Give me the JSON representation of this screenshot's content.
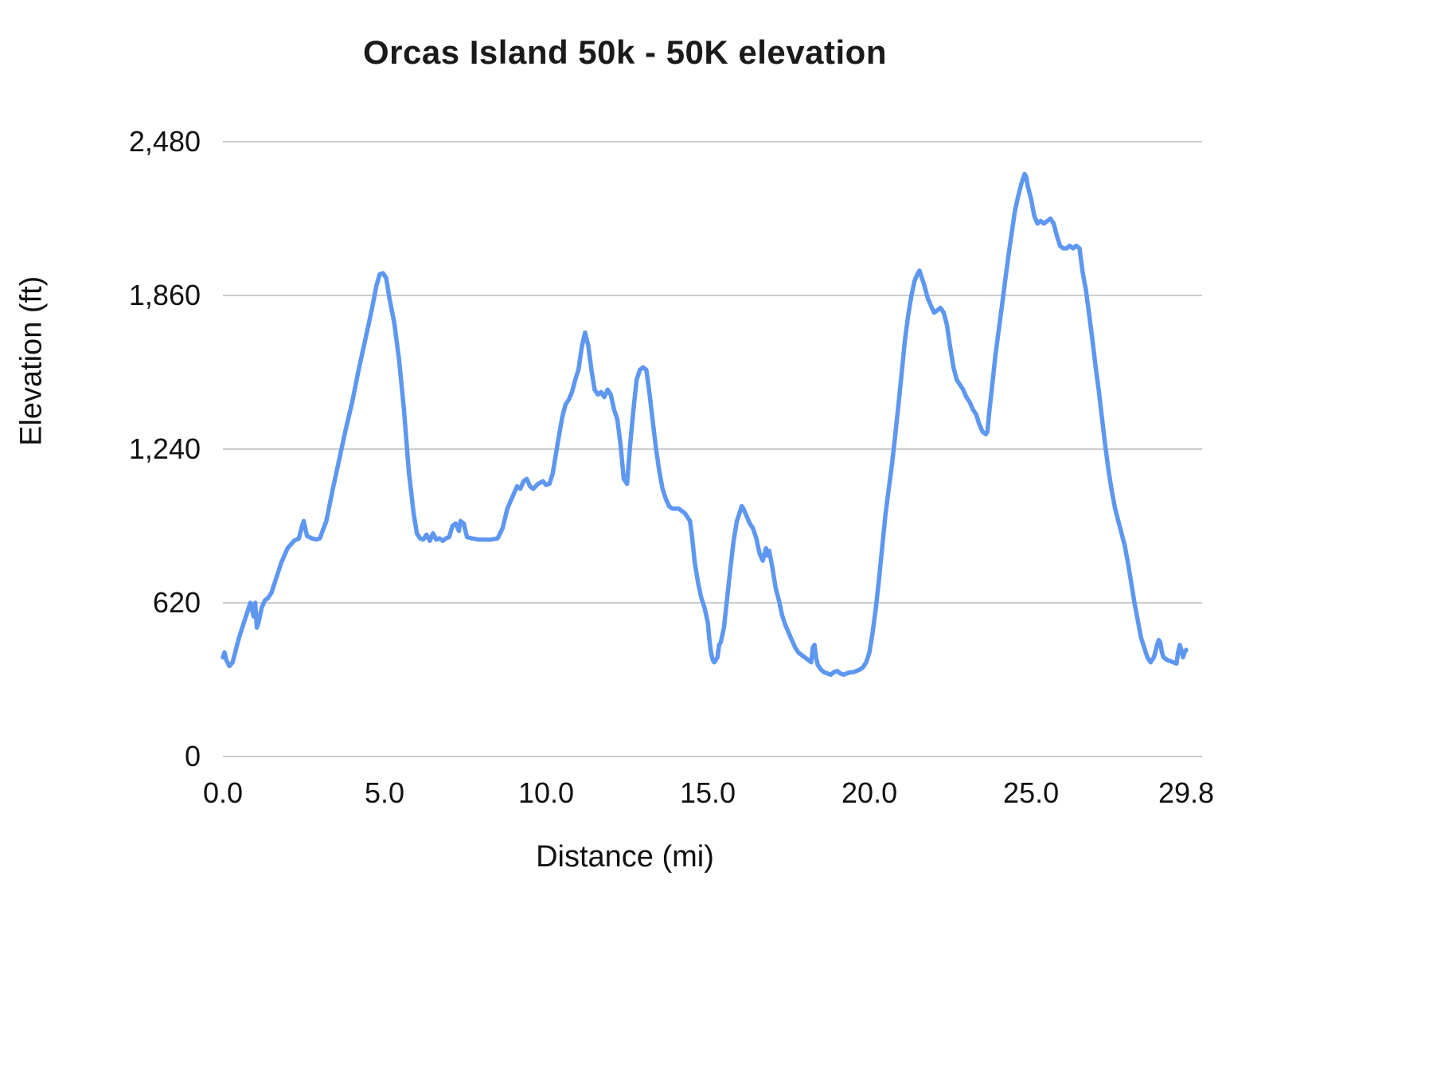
{
  "title": "Orcas Island 50k - 50K elevation",
  "chart_data": {
    "type": "line",
    "title": "Orcas Island 50k - 50K elevation",
    "xlabel": "Distance (mi)",
    "ylabel": "Elevation (ft)",
    "xlim": [
      0,
      29.8
    ],
    "ylim": [
      0,
      2480
    ],
    "grid": "horizontal",
    "legend": "none",
    "line_color": "#5e97f0",
    "grid_color": "#cccccc",
    "x_ticks": [
      {
        "value": 0,
        "label": "0.0"
      },
      {
        "value": 5,
        "label": "5.0"
      },
      {
        "value": 10,
        "label": "10.0"
      },
      {
        "value": 15,
        "label": "15.0"
      },
      {
        "value": 20,
        "label": "20.0"
      },
      {
        "value": 25,
        "label": "25.0"
      },
      {
        "value": 29.8,
        "label": "29.8"
      }
    ],
    "y_ticks": [
      {
        "value": 0,
        "label": "0"
      },
      {
        "value": 620,
        "label": "620"
      },
      {
        "value": 1240,
        "label": "1,240"
      },
      {
        "value": 1860,
        "label": "1,860"
      },
      {
        "value": 2480,
        "label": "2,480"
      }
    ],
    "series": [
      {
        "name": "elevation",
        "points": [
          [
            0.0,
            400
          ],
          [
            0.05,
            420
          ],
          [
            0.1,
            390
          ],
          [
            0.2,
            365
          ],
          [
            0.3,
            380
          ],
          [
            0.5,
            480
          ],
          [
            0.7,
            560
          ],
          [
            0.85,
            620
          ],
          [
            0.95,
            565
          ],
          [
            1.0,
            620
          ],
          [
            1.05,
            520
          ],
          [
            1.1,
            540
          ],
          [
            1.2,
            600
          ],
          [
            1.3,
            630
          ],
          [
            1.4,
            640
          ],
          [
            1.5,
            660
          ],
          [
            1.6,
            700
          ],
          [
            1.8,
            780
          ],
          [
            2.0,
            840
          ],
          [
            2.2,
            870
          ],
          [
            2.35,
            880
          ],
          [
            2.45,
            930
          ],
          [
            2.5,
            950
          ],
          [
            2.55,
            920
          ],
          [
            2.6,
            890
          ],
          [
            2.75,
            880
          ],
          [
            2.9,
            875
          ],
          [
            3.0,
            880
          ],
          [
            3.2,
            950
          ],
          [
            3.4,
            1080
          ],
          [
            3.6,
            1200
          ],
          [
            3.8,
            1320
          ],
          [
            4.0,
            1430
          ],
          [
            4.2,
            1560
          ],
          [
            4.4,
            1680
          ],
          [
            4.6,
            1800
          ],
          [
            4.75,
            1900
          ],
          [
            4.85,
            1945
          ],
          [
            4.95,
            1950
          ],
          [
            5.05,
            1930
          ],
          [
            5.15,
            1850
          ],
          [
            5.3,
            1750
          ],
          [
            5.45,
            1600
          ],
          [
            5.6,
            1400
          ],
          [
            5.75,
            1150
          ],
          [
            5.9,
            980
          ],
          [
            6.0,
            900
          ],
          [
            6.1,
            880
          ],
          [
            6.2,
            875
          ],
          [
            6.3,
            895
          ],
          [
            6.4,
            870
          ],
          [
            6.5,
            900
          ],
          [
            6.6,
            875
          ],
          [
            6.7,
            880
          ],
          [
            6.8,
            870
          ],
          [
            6.9,
            880
          ],
          [
            7.0,
            885
          ],
          [
            7.1,
            930
          ],
          [
            7.2,
            940
          ],
          [
            7.3,
            910
          ],
          [
            7.35,
            950
          ],
          [
            7.45,
            940
          ],
          [
            7.55,
            885
          ],
          [
            7.7,
            880
          ],
          [
            7.9,
            875
          ],
          [
            8.1,
            875
          ],
          [
            8.3,
            875
          ],
          [
            8.5,
            880
          ],
          [
            8.65,
            920
          ],
          [
            8.8,
            1000
          ],
          [
            9.0,
            1060
          ],
          [
            9.1,
            1090
          ],
          [
            9.2,
            1080
          ],
          [
            9.3,
            1110
          ],
          [
            9.4,
            1120
          ],
          [
            9.5,
            1090
          ],
          [
            9.6,
            1080
          ],
          [
            9.75,
            1100
          ],
          [
            9.9,
            1110
          ],
          [
            10.0,
            1095
          ],
          [
            10.1,
            1100
          ],
          [
            10.2,
            1140
          ],
          [
            10.35,
            1260
          ],
          [
            10.5,
            1370
          ],
          [
            10.6,
            1420
          ],
          [
            10.7,
            1440
          ],
          [
            10.8,
            1470
          ],
          [
            10.9,
            1520
          ],
          [
            11.0,
            1560
          ],
          [
            11.1,
            1650
          ],
          [
            11.2,
            1710
          ],
          [
            11.3,
            1660
          ],
          [
            11.4,
            1560
          ],
          [
            11.5,
            1480
          ],
          [
            11.6,
            1460
          ],
          [
            11.7,
            1470
          ],
          [
            11.8,
            1450
          ],
          [
            11.9,
            1480
          ],
          [
            12.0,
            1460
          ],
          [
            12.1,
            1400
          ],
          [
            12.2,
            1360
          ],
          [
            12.3,
            1260
          ],
          [
            12.4,
            1120
          ],
          [
            12.5,
            1100
          ],
          [
            12.6,
            1260
          ],
          [
            12.7,
            1400
          ],
          [
            12.8,
            1520
          ],
          [
            12.9,
            1560
          ],
          [
            13.0,
            1570
          ],
          [
            13.1,
            1560
          ],
          [
            13.2,
            1460
          ],
          [
            13.3,
            1350
          ],
          [
            13.4,
            1240
          ],
          [
            13.5,
            1150
          ],
          [
            13.6,
            1080
          ],
          [
            13.7,
            1040
          ],
          [
            13.8,
            1010
          ],
          [
            13.9,
            1000
          ],
          [
            14.0,
            1000
          ],
          [
            14.1,
            1000
          ],
          [
            14.2,
            990
          ],
          [
            14.3,
            980
          ],
          [
            14.4,
            960
          ],
          [
            14.45,
            950
          ],
          [
            14.5,
            900
          ],
          [
            14.6,
            780
          ],
          [
            14.7,
            700
          ],
          [
            14.8,
            640
          ],
          [
            14.9,
            600
          ],
          [
            15.0,
            540
          ],
          [
            15.05,
            470
          ],
          [
            15.1,
            420
          ],
          [
            15.15,
            390
          ],
          [
            15.2,
            380
          ],
          [
            15.3,
            400
          ],
          [
            15.35,
            450
          ],
          [
            15.4,
            460
          ],
          [
            15.5,
            520
          ],
          [
            15.6,
            640
          ],
          [
            15.7,
            760
          ],
          [
            15.8,
            870
          ],
          [
            15.9,
            950
          ],
          [
            16.0,
            990
          ],
          [
            16.05,
            1010
          ],
          [
            16.1,
            1000
          ],
          [
            16.2,
            970
          ],
          [
            16.3,
            940
          ],
          [
            16.4,
            920
          ],
          [
            16.5,
            880
          ],
          [
            16.6,
            820
          ],
          [
            16.7,
            790
          ],
          [
            16.8,
            840
          ],
          [
            16.85,
            810
          ],
          [
            16.9,
            830
          ],
          [
            17.0,
            760
          ],
          [
            17.1,
            680
          ],
          [
            17.2,
            630
          ],
          [
            17.3,
            570
          ],
          [
            17.4,
            530
          ],
          [
            17.5,
            500
          ],
          [
            17.6,
            470
          ],
          [
            17.7,
            440
          ],
          [
            17.8,
            420
          ],
          [
            17.9,
            410
          ],
          [
            18.0,
            400
          ],
          [
            18.1,
            390
          ],
          [
            18.2,
            380
          ],
          [
            18.25,
            440
          ],
          [
            18.3,
            450
          ],
          [
            18.35,
            400
          ],
          [
            18.4,
            370
          ],
          [
            18.5,
            350
          ],
          [
            18.6,
            340
          ],
          [
            18.7,
            335
          ],
          [
            18.8,
            330
          ],
          [
            18.9,
            340
          ],
          [
            19.0,
            345
          ],
          [
            19.1,
            335
          ],
          [
            19.2,
            330
          ],
          [
            19.3,
            335
          ],
          [
            19.4,
            340
          ],
          [
            19.5,
            340
          ],
          [
            19.6,
            345
          ],
          [
            19.7,
            350
          ],
          [
            19.8,
            360
          ],
          [
            19.9,
            380
          ],
          [
            20.0,
            420
          ],
          [
            20.1,
            500
          ],
          [
            20.2,
            600
          ],
          [
            20.3,
            720
          ],
          [
            20.4,
            850
          ],
          [
            20.5,
            980
          ],
          [
            20.6,
            1080
          ],
          [
            20.7,
            1180
          ],
          [
            20.8,
            1300
          ],
          [
            20.9,
            1420
          ],
          [
            21.0,
            1550
          ],
          [
            21.1,
            1680
          ],
          [
            21.2,
            1780
          ],
          [
            21.3,
            1860
          ],
          [
            21.4,
            1920
          ],
          [
            21.5,
            1950
          ],
          [
            21.55,
            1960
          ],
          [
            21.6,
            1940
          ],
          [
            21.7,
            1900
          ],
          [
            21.8,
            1850
          ],
          [
            21.9,
            1820
          ],
          [
            22.0,
            1790
          ],
          [
            22.1,
            1800
          ],
          [
            22.2,
            1810
          ],
          [
            22.3,
            1790
          ],
          [
            22.4,
            1740
          ],
          [
            22.5,
            1650
          ],
          [
            22.6,
            1570
          ],
          [
            22.7,
            1520
          ],
          [
            22.8,
            1500
          ],
          [
            22.9,
            1480
          ],
          [
            23.0,
            1450
          ],
          [
            23.1,
            1430
          ],
          [
            23.2,
            1400
          ],
          [
            23.3,
            1380
          ],
          [
            23.4,
            1340
          ],
          [
            23.5,
            1310
          ],
          [
            23.6,
            1300
          ],
          [
            23.65,
            1310
          ],
          [
            23.7,
            1380
          ],
          [
            23.8,
            1500
          ],
          [
            23.9,
            1620
          ],
          [
            24.0,
            1720
          ],
          [
            24.1,
            1820
          ],
          [
            24.2,
            1920
          ],
          [
            24.3,
            2020
          ],
          [
            24.4,
            2110
          ],
          [
            24.5,
            2200
          ],
          [
            24.6,
            2260
          ],
          [
            24.7,
            2310
          ],
          [
            24.8,
            2350
          ],
          [
            24.85,
            2340
          ],
          [
            24.9,
            2300
          ],
          [
            25.0,
            2250
          ],
          [
            25.1,
            2180
          ],
          [
            25.2,
            2150
          ],
          [
            25.3,
            2160
          ],
          [
            25.4,
            2150
          ],
          [
            25.5,
            2160
          ],
          [
            25.6,
            2170
          ],
          [
            25.7,
            2150
          ],
          [
            25.8,
            2100
          ],
          [
            25.9,
            2060
          ],
          [
            26.0,
            2050
          ],
          [
            26.1,
            2050
          ],
          [
            26.2,
            2060
          ],
          [
            26.3,
            2050
          ],
          [
            26.4,
            2060
          ],
          [
            26.5,
            2050
          ],
          [
            26.55,
            2000
          ],
          [
            26.6,
            1950
          ],
          [
            26.7,
            1880
          ],
          [
            26.8,
            1780
          ],
          [
            26.9,
            1680
          ],
          [
            27.0,
            1570
          ],
          [
            27.1,
            1470
          ],
          [
            27.2,
            1360
          ],
          [
            27.3,
            1250
          ],
          [
            27.4,
            1150
          ],
          [
            27.5,
            1070
          ],
          [
            27.6,
            1000
          ],
          [
            27.7,
            950
          ],
          [
            27.8,
            900
          ],
          [
            27.9,
            850
          ],
          [
            28.0,
            780
          ],
          [
            28.1,
            700
          ],
          [
            28.2,
            620
          ],
          [
            28.3,
            550
          ],
          [
            28.4,
            480
          ],
          [
            28.5,
            440
          ],
          [
            28.6,
            400
          ],
          [
            28.7,
            380
          ],
          [
            28.8,
            400
          ],
          [
            28.9,
            450
          ],
          [
            28.95,
            470
          ],
          [
            29.0,
            460
          ],
          [
            29.05,
            420
          ],
          [
            29.1,
            400
          ],
          [
            29.2,
            390
          ],
          [
            29.3,
            385
          ],
          [
            29.4,
            380
          ],
          [
            29.5,
            375
          ],
          [
            29.55,
            420
          ],
          [
            29.6,
            450
          ],
          [
            29.65,
            430
          ],
          [
            29.7,
            400
          ],
          [
            29.75,
            420
          ],
          [
            29.8,
            430
          ]
        ]
      }
    ]
  }
}
